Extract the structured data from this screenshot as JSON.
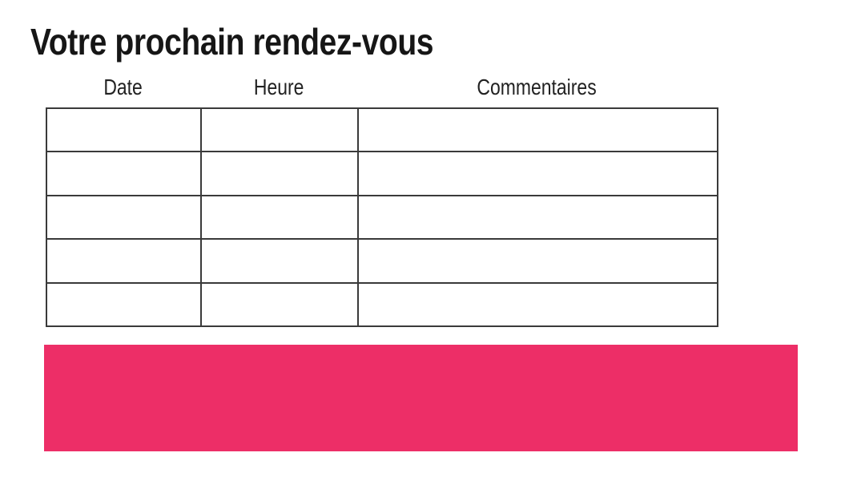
{
  "title": "Votre prochain rendez-vous",
  "table": {
    "headers": [
      "Date",
      "Heure",
      "Commentaires"
    ],
    "rows": [
      [
        "",
        "",
        ""
      ],
      [
        "",
        "",
        ""
      ],
      [
        "",
        "",
        ""
      ],
      [
        "",
        "",
        ""
      ],
      [
        "",
        "",
        ""
      ]
    ]
  },
  "banner": {
    "color": "#ED2E67"
  },
  "colors": {
    "accent_pink": "#ED2E67",
    "text": "#1a1a1a",
    "table_border": "#2b2b2b",
    "background": "#ffffff"
  }
}
